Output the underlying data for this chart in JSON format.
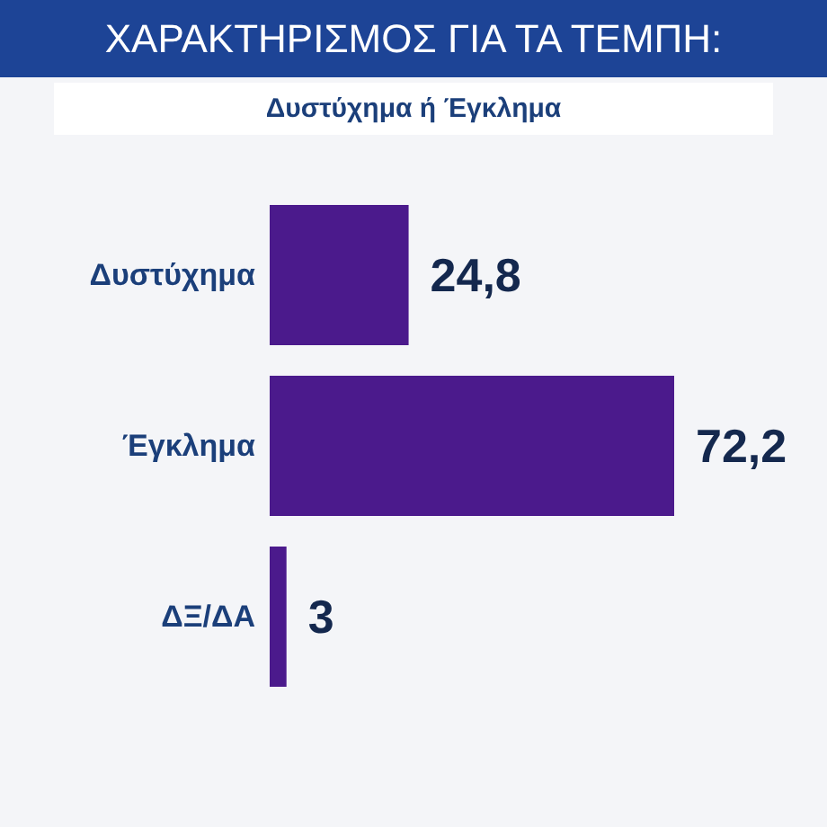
{
  "chart_data": {
    "type": "bar",
    "orientation": "horizontal",
    "title": "ΧΑΡΑΚΤΗΡΙΣΜΟΣ ΓΙΑ ΤΑ ΤΕΜΠΗ:",
    "subtitle": "Δυστύχημα ή Έγκλημα",
    "categories": [
      "Δυστύχημα",
      "Έγκλημα",
      "ΔΞ/ΔΑ"
    ],
    "values": [
      24.8,
      72.2,
      3
    ],
    "value_labels": [
      "24,8",
      "72,2",
      "3"
    ],
    "color": "#4b1a8c"
  }
}
